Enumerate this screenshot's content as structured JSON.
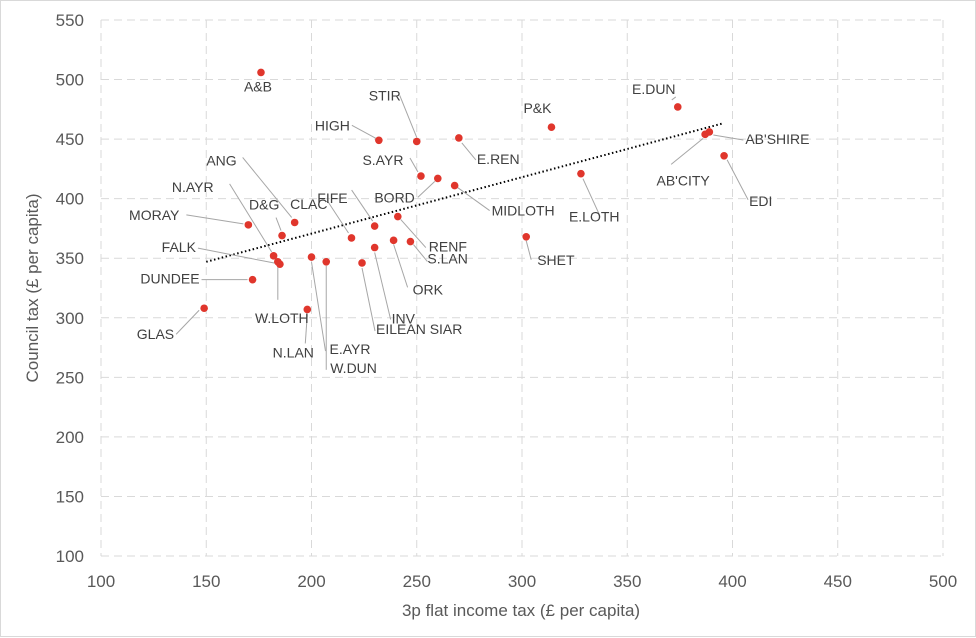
{
  "chart_data": {
    "type": "scatter",
    "title": "",
    "xlabel": "3p flat income tax (£ per capita)",
    "ylabel": "Council tax (£ per capita)",
    "xlim": [
      100,
      500
    ],
    "ylim": [
      100,
      550
    ],
    "xticks": [
      100,
      150,
      200,
      250,
      300,
      350,
      400,
      450,
      500
    ],
    "yticks": [
      100,
      150,
      200,
      250,
      300,
      350,
      400,
      450,
      500,
      550
    ],
    "grid": true,
    "marker_color": "#e0362c",
    "trendline": {
      "style": "dotted",
      "color": "#000000",
      "x": [
        150,
        395
      ],
      "y": [
        347,
        463
      ]
    },
    "points": [
      {
        "label": "A&B",
        "x": 176,
        "y": 506
      },
      {
        "label": "E.DUN",
        "x": 374,
        "y": 477
      },
      {
        "label": "P&K",
        "x": 314,
        "y": 460
      },
      {
        "label": "STIR",
        "x": 250,
        "y": 448
      },
      {
        "label": "HIGH",
        "x": 232,
        "y": 449
      },
      {
        "label": "E.REN",
        "x": 270,
        "y": 451
      },
      {
        "label": "AB'SHIRE",
        "x": 389,
        "y": 456
      },
      {
        "label": "AB'CITY",
        "x": 387,
        "y": 454
      },
      {
        "label": "EDI",
        "x": 396,
        "y": 436
      },
      {
        "label": "S.AYR",
        "x": 252,
        "y": 419
      },
      {
        "label": "BORD",
        "x": 260,
        "y": 417
      },
      {
        "label": "MIDLOTH",
        "x": 268,
        "y": 411
      },
      {
        "label": "E.LOTH",
        "x": 328,
        "y": 421
      },
      {
        "label": "ANG",
        "x": 192,
        "y": 380
      },
      {
        "label": "D&G",
        "x": 186,
        "y": 369
      },
      {
        "label": "N.AYR",
        "x": 182,
        "y": 352
      },
      {
        "label": "MORAY",
        "x": 170,
        "y": 378
      },
      {
        "label": "FALK",
        "x": 185,
        "y": 345
      },
      {
        "label": "DUNDEE",
        "x": 172,
        "y": 332
      },
      {
        "label": "GLAS",
        "x": 149,
        "y": 308
      },
      {
        "label": "W.LOTH",
        "x": 184,
        "y": 347
      },
      {
        "label": "CLAC",
        "x": 219,
        "y": 367
      },
      {
        "label": "FIFE",
        "x": 230,
        "y": 377
      },
      {
        "label": "RENF",
        "x": 241,
        "y": 385
      },
      {
        "label": "S.LAN",
        "x": 247,
        "y": 364
      },
      {
        "label": "ORK",
        "x": 239,
        "y": 365
      },
      {
        "label": "INV",
        "x": 230,
        "y": 359
      },
      {
        "label": "SHET",
        "x": 302,
        "y": 368
      },
      {
        "label": "N.LAN",
        "x": 198,
        "y": 307
      },
      {
        "label": "E.AYR",
        "x": 200,
        "y": 351
      },
      {
        "label": "W.DUN",
        "x": 207,
        "y": 347
      },
      {
        "label": "EILEAN SIAR",
        "x": 224,
        "y": 346
      }
    ]
  }
}
